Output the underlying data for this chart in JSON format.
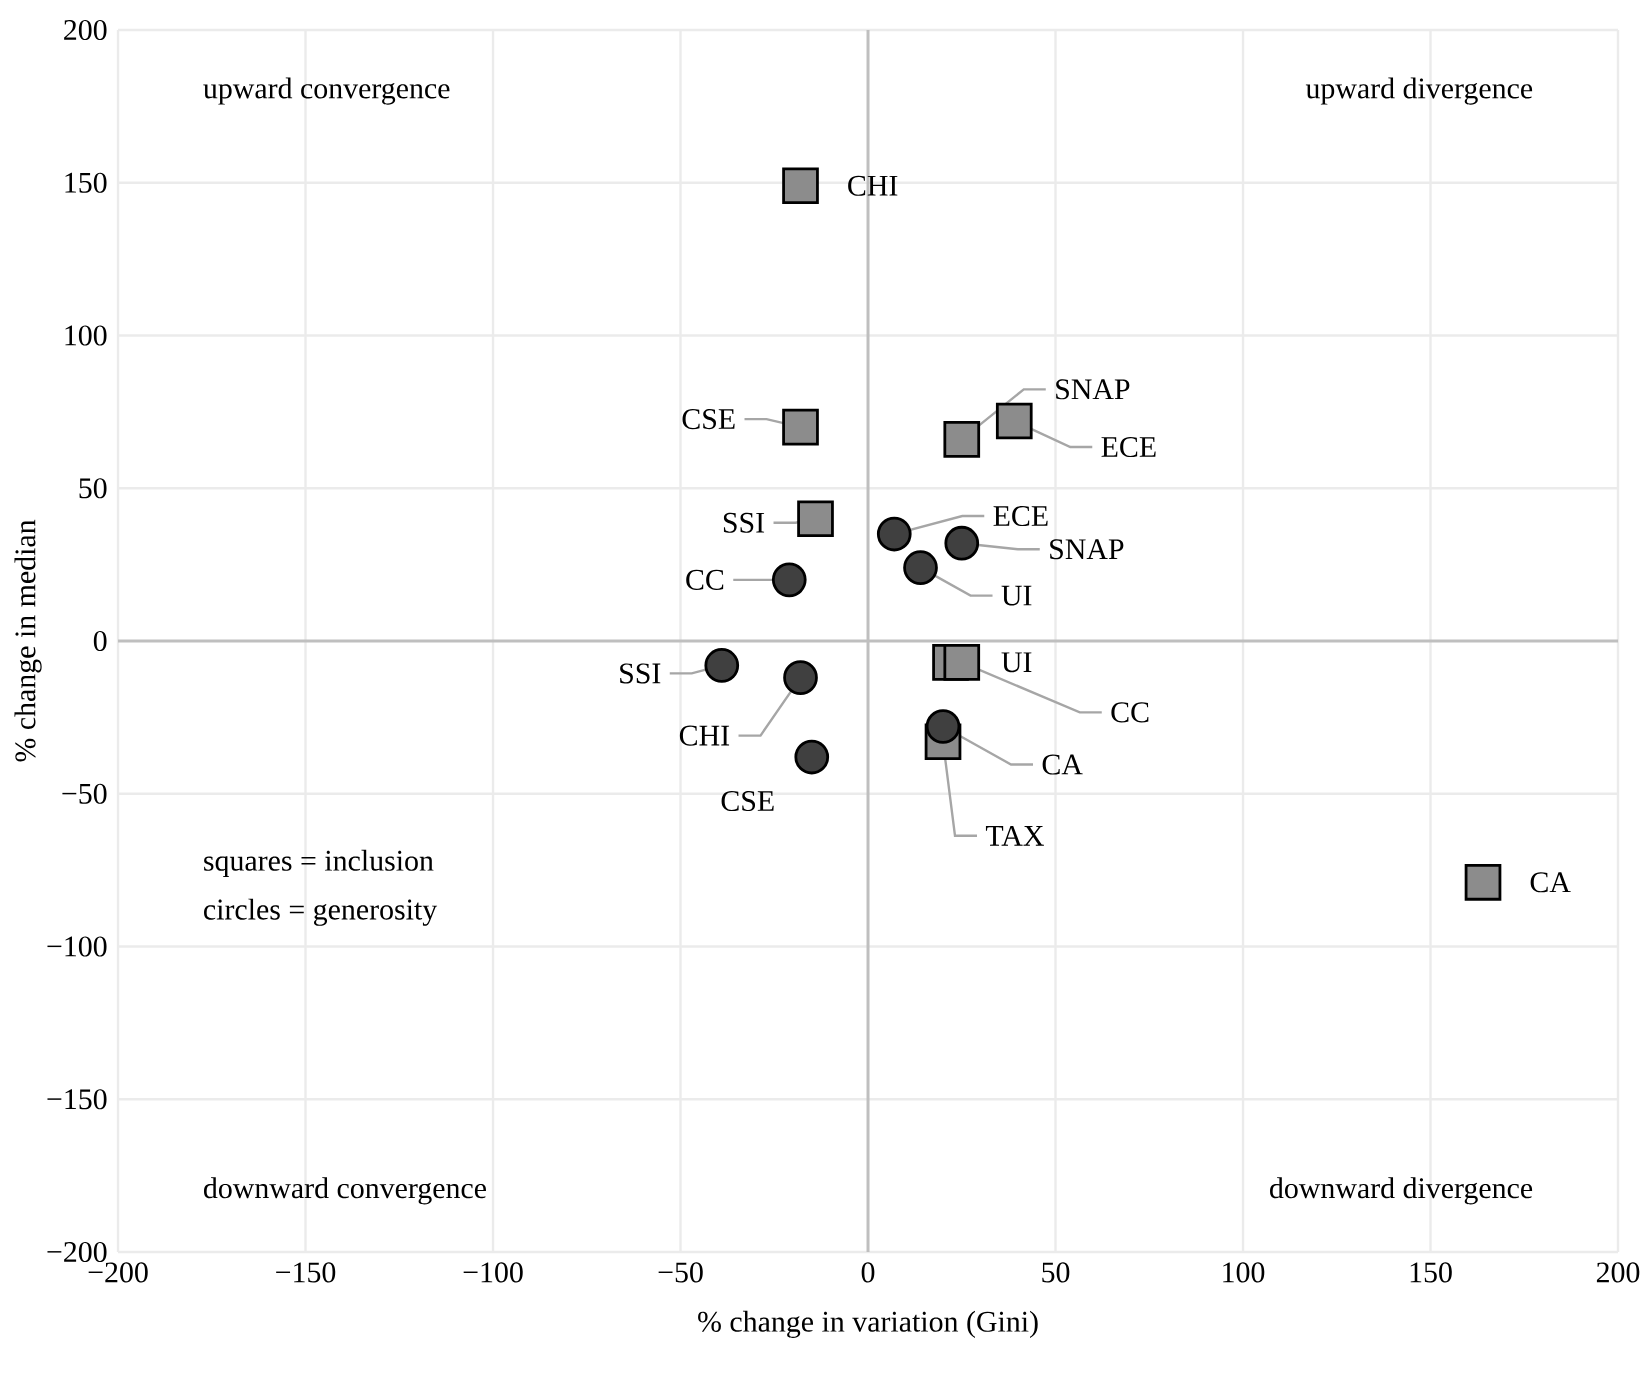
{
  "chart_data": {
    "type": "scatter",
    "xlabel": "% change in variation (Gini)",
    "ylabel": "% change in median",
    "xlim": [
      -200,
      200
    ],
    "ylim": [
      -200,
      200
    ],
    "xticks": [
      {
        "value": -200,
        "label": "−200"
      },
      {
        "value": -150,
        "label": "−150"
      },
      {
        "value": -100,
        "label": "−100"
      },
      {
        "value": -50,
        "label": "−50"
      },
      0,
      50,
      100,
      150,
      200
    ],
    "yticks": [
      {
        "value": -200,
        "label": "−200"
      },
      {
        "value": -150,
        "label": "−150"
      },
      {
        "value": -100,
        "label": "−100"
      },
      {
        "value": -50,
        "label": "−50"
      },
      0,
      50,
      100,
      150,
      200
    ],
    "grid": true,
    "series": [
      {
        "color": "#8c8c8c",
        "marker": "square",
        "x": [
          -18,
          -18,
          25,
          39,
          -14,
          22,
          25,
          20,
          164
        ],
        "values": [
          149,
          70,
          66,
          72,
          40,
          -7,
          -7,
          -33,
          -79
        ]
      },
      {
        "color": "#404040",
        "marker": "circle",
        "x": [
          7,
          25,
          14,
          -21,
          -39,
          -18,
          -15,
          20
        ],
        "values": [
          35,
          32,
          24,
          20,
          -8,
          -12,
          -38,
          -28
        ]
      }
    ],
    "annotations": [
      {
        "text": "CHI",
        "x": -18,
        "y": 149
      },
      {
        "text": "CSE",
        "x": -18,
        "y": 70
      },
      {
        "text": "SNAP",
        "x": 25,
        "y": 66
      },
      {
        "text": "ECE",
        "x": 39,
        "y": 72
      },
      {
        "text": "SSI",
        "x": -14,
        "y": 40
      },
      {
        "text": "ECE",
        "x": 7,
        "y": 35
      },
      {
        "text": "SNAP",
        "x": 25,
        "y": 32
      },
      {
        "text": "UI",
        "x": 14,
        "y": 24
      },
      {
        "text": "CC",
        "x": -21,
        "y": 20
      },
      {
        "text": "SSI",
        "x": -39,
        "y": -8
      },
      {
        "text": "CHI",
        "x": -18,
        "y": -12
      },
      {
        "text": "CSE",
        "x": -15,
        "y": -38
      },
      {
        "text": "UI",
        "x": 22,
        "y": -7
      },
      {
        "text": "CC",
        "x": 25,
        "y": -7
      },
      {
        "text": "CA",
        "x": 20,
        "y": -28
      },
      {
        "text": "TAX",
        "x": 20,
        "y": -33
      },
      {
        "text": "CA",
        "x": 164,
        "y": -79
      },
      "upward convergence",
      "upward divergence",
      "downward convergence",
      "downward divergence",
      "squares = inclusion",
      "circles = generosity"
    ]
  }
}
